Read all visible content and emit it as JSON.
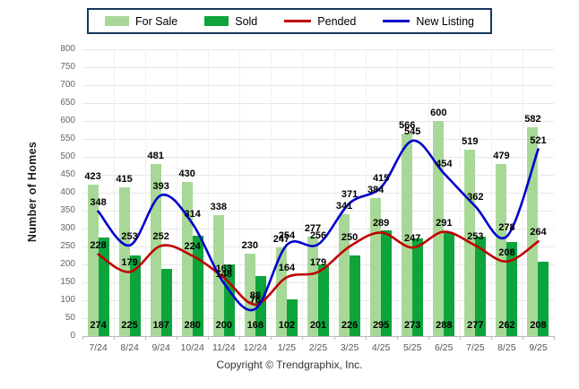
{
  "legend": {
    "items": [
      {
        "id": "for-sale",
        "label": "For Sale",
        "swatch": "bar",
        "color": "#a8d898"
      },
      {
        "id": "sold",
        "label": "Sold",
        "swatch": "bar",
        "color": "#0da43c"
      },
      {
        "id": "pended",
        "label": "Pended",
        "swatch": "line",
        "color": "#c00000"
      },
      {
        "id": "new-listing",
        "label": "New Listing",
        "swatch": "line",
        "color": "#0000cd"
      }
    ]
  },
  "chart_data": {
    "type": "combo-bar-line",
    "categories": [
      "7/24",
      "8/24",
      "9/24",
      "10/24",
      "11/24",
      "12/24",
      "1/25",
      "2/25",
      "3/25",
      "4/25",
      "5/25",
      "6/25",
      "7/25",
      "8/25",
      "9/25"
    ],
    "series": [
      {
        "name": "For Sale",
        "type": "bar",
        "color": "#a8d898",
        "values": [
          423,
          415,
          481,
          430,
          338,
          230,
          247,
          277,
          341,
          384,
          566,
          600,
          519,
          479,
          582
        ]
      },
      {
        "name": "Sold",
        "type": "bar",
        "color": "#0da43c",
        "values": [
          274,
          225,
          187,
          280,
          200,
          168,
          102,
          201,
          226,
          295,
          273,
          288,
          277,
          262,
          208
        ]
      },
      {
        "name": "Pended",
        "type": "line",
        "color": "#c00000",
        "values": [
          228,
          179,
          252,
          224,
          163,
          88,
          164,
          179,
          250,
          289,
          247,
          291,
          253,
          208,
          264
        ]
      },
      {
        "name": "New Listing",
        "type": "line",
        "color": "#0000cd",
        "values": [
          348,
          253,
          393,
          314,
          148,
          76,
          254,
          256,
          371,
          415,
          545,
          454,
          362,
          278,
          521
        ]
      }
    ],
    "title": "",
    "xlabel": "",
    "ylabel": "Number of Homes",
    "ylim": [
      0,
      800
    ],
    "ytick_step": 50,
    "grid": true,
    "legend_position": "top-center"
  },
  "footer": {
    "copyright": "Copyright © Trendgraphix, Inc."
  }
}
